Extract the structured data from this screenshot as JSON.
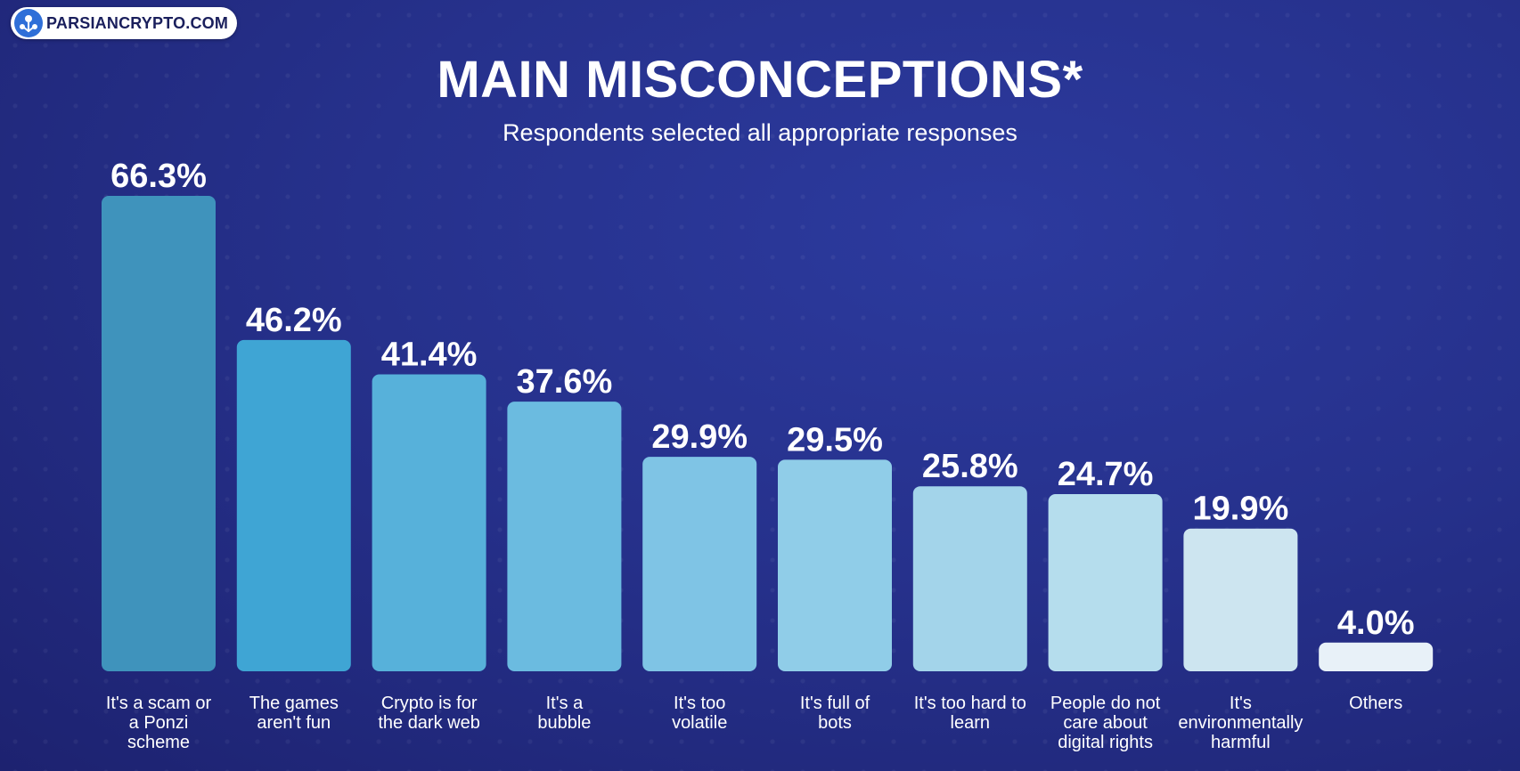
{
  "brand": {
    "logo_text": "PARSIANCRYPTO.COM"
  },
  "chart_data": {
    "type": "bar",
    "title": "MAIN MISCONCEPTIONS*",
    "subtitle": "Respondents selected all appropriate  responses",
    "categories": [
      [
        "It's a scam or",
        "a Ponzi",
        "scheme"
      ],
      [
        "The games",
        "aren't fun"
      ],
      [
        "Crypto is for",
        "the dark web"
      ],
      [
        "It's a",
        "bubble"
      ],
      [
        "It's too",
        "volatile"
      ],
      [
        "It's full of",
        "bots"
      ],
      [
        "It's too hard to",
        "learn"
      ],
      [
        "People do not",
        "care about",
        "digital rights"
      ],
      [
        "It's",
        "environmentally",
        "harmful"
      ],
      [
        "Others"
      ]
    ],
    "values": [
      66.3,
      46.2,
      41.4,
      37.6,
      29.9,
      29.5,
      25.8,
      24.7,
      19.9,
      4.0
    ],
    "value_labels": [
      "66.3%",
      "46.2%",
      "41.4%",
      "37.6%",
      "29.9%",
      "29.5%",
      "25.8%",
      "24.7%",
      "19.9%",
      "4.0%"
    ],
    "ylim": [
      0,
      66.3
    ],
    "grid": false,
    "legend": "none",
    "colors": [
      "#3f93bc",
      "#3fa5d4",
      "#57b1da",
      "#6bbbe0",
      "#7fc4e5",
      "#90cde8",
      "#a3d4ea",
      "#b5dded",
      "#cde5f0",
      "#e8f1f8"
    ]
  }
}
